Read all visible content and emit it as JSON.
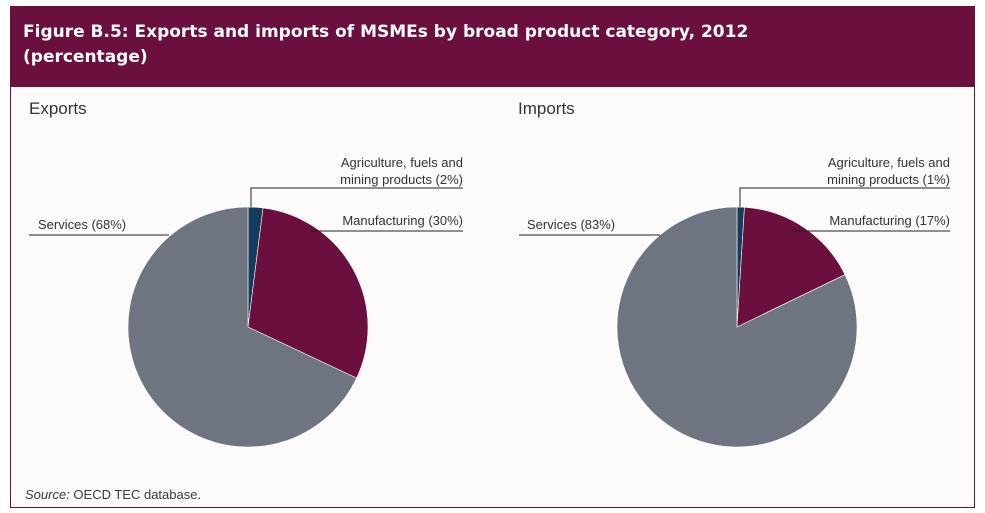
{
  "figure": {
    "title_line1": "Figure B.5: Exports and imports of MSMEs by broad product category, 2012",
    "title_line2": "(percentage)",
    "source_label": "Source:",
    "source_text": " OECD TEC database."
  },
  "colors": {
    "header_bg": "#6b0f3e",
    "agriculture": "#163c5c",
    "manufacturing": "#6b0f3e",
    "services": "#6e7580"
  },
  "chart_data": [
    {
      "type": "pie",
      "title": "Exports",
      "slices": [
        {
          "key": "agriculture",
          "label_line1": "Agriculture, fuels and",
          "label_line2": "mining products (2%)",
          "value": 2
        },
        {
          "key": "manufacturing",
          "label_line1": "Manufacturing (30%)",
          "label_line2": "",
          "value": 30
        },
        {
          "key": "services",
          "label_line1": "Services (68%)",
          "label_line2": "",
          "value": 68
        }
      ]
    },
    {
      "type": "pie",
      "title": "Imports",
      "slices": [
        {
          "key": "agriculture",
          "label_line1": "Agriculture, fuels and",
          "label_line2": "mining products (1%)",
          "value": 1
        },
        {
          "key": "manufacturing",
          "label_line1": "Manufacturing (17%)",
          "label_line2": "",
          "value": 17
        },
        {
          "key": "services",
          "label_line1": "Services (83%)",
          "label_line2": "",
          "value": 83
        }
      ]
    }
  ]
}
